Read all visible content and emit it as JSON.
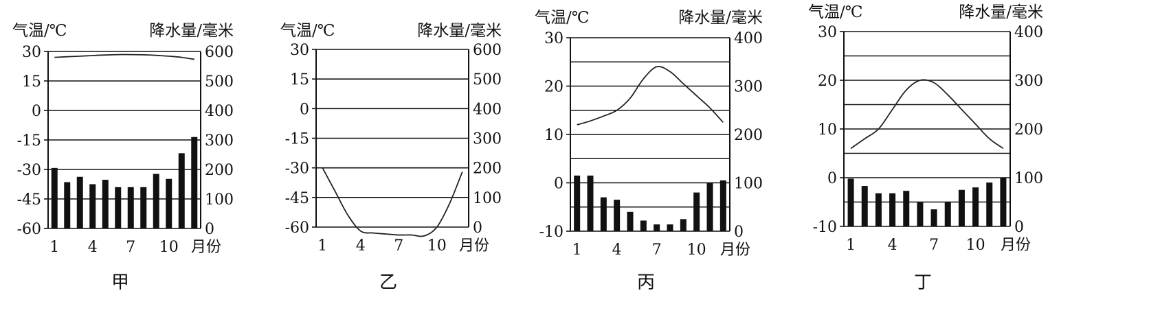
{
  "chart_data": [
    {
      "type": "bar",
      "panel_label": "甲",
      "temp_label": "气温/℃",
      "precip_label": "降水量/毫米",
      "month_label": "月份",
      "temp_range": [
        -60,
        30
      ],
      "temp_ticks": [
        "-60",
        "-45",
        "-30",
        "-15",
        "0",
        "15",
        "30"
      ],
      "precip_range": [
        0,
        600
      ],
      "precip_ticks": [
        "0",
        "100",
        "200",
        "300",
        "400",
        "500",
        "600"
      ],
      "months": [
        1,
        2,
        3,
        4,
        5,
        6,
        7,
        8,
        9,
        10,
        11,
        12
      ],
      "month_ticks": [
        "1",
        "4",
        "7",
        "10"
      ],
      "temperature": [
        27,
        27.3,
        27.6,
        27.9,
        28.2,
        28.4,
        28.4,
        28.3,
        28,
        27.6,
        27,
        26
      ],
      "precipitation": [
        205,
        157,
        175,
        150,
        165,
        140,
        140,
        140,
        185,
        168,
        255,
        310
      ]
    },
    {
      "type": "bar",
      "panel_label": "乙",
      "temp_label": "气温/℃",
      "precip_label": "降水量/毫米",
      "month_label": "月份",
      "temp_range": [
        -60,
        30
      ],
      "temp_ticks": [
        "-60",
        "-45",
        "-30",
        "-15",
        "0",
        "15",
        "30"
      ],
      "precip_range": [
        0,
        600
      ],
      "precip_ticks": [
        "0",
        "100",
        "200",
        "300",
        "400",
        "500",
        "600"
      ],
      "months": [
        1,
        2,
        3,
        4,
        5,
        6,
        7,
        8,
        9,
        10,
        11,
        12
      ],
      "month_ticks": [
        "1",
        "4",
        "7",
        "10"
      ],
      "temperature": [
        -30,
        -42,
        -54,
        -62,
        -63,
        -63.5,
        -64,
        -64,
        -64.5,
        -60,
        -48,
        -32
      ],
      "precipitation": [
        0,
        0,
        0,
        0,
        0,
        0,
        0,
        0,
        0,
        0,
        0,
        0
      ]
    },
    {
      "type": "bar",
      "panel_label": "丙",
      "temp_label": "气温/℃",
      "precip_label": "降水量/毫米",
      "month_label": "月份",
      "temp_range": [
        -10,
        30
      ],
      "temp_ticks": [
        "-10",
        "0",
        "10",
        "20",
        "30"
      ],
      "precip_range": [
        0,
        400
      ],
      "precip_ticks": [
        "0",
        "100",
        "200",
        "300",
        "400"
      ],
      "months": [
        1,
        2,
        3,
        4,
        5,
        6,
        7,
        8,
        9,
        10,
        11,
        12
      ],
      "month_ticks": [
        "1",
        "4",
        "7",
        "10"
      ],
      "temperature": [
        12,
        12.8,
        13.8,
        15,
        17.5,
        21.5,
        24,
        23,
        20.5,
        18,
        15.5,
        12.5
      ],
      "precipitation": [
        115,
        115,
        70,
        65,
        40,
        22,
        14,
        14,
        25,
        80,
        100,
        105
      ]
    },
    {
      "type": "bar",
      "panel_label": "丁",
      "temp_label": "气温/℃",
      "precip_label": "降水量/毫米",
      "month_label": "月份",
      "temp_range": [
        -10,
        30
      ],
      "temp_ticks": [
        "-10",
        "0",
        "10",
        "20",
        "30"
      ],
      "precip_range": [
        0,
        400
      ],
      "precip_ticks": [
        "0",
        "100",
        "200",
        "300",
        "400"
      ],
      "months": [
        1,
        2,
        3,
        4,
        5,
        6,
        7,
        8,
        9,
        10,
        11,
        12
      ],
      "month_ticks": [
        "1",
        "4",
        "7",
        "10"
      ],
      "temperature": [
        6,
        8,
        10,
        14,
        18,
        20,
        19.5,
        17,
        14,
        11,
        8,
        6
      ],
      "precipitation": [
        98,
        83,
        68,
        68,
        73,
        50,
        35,
        50,
        75,
        80,
        90,
        100
      ]
    }
  ]
}
